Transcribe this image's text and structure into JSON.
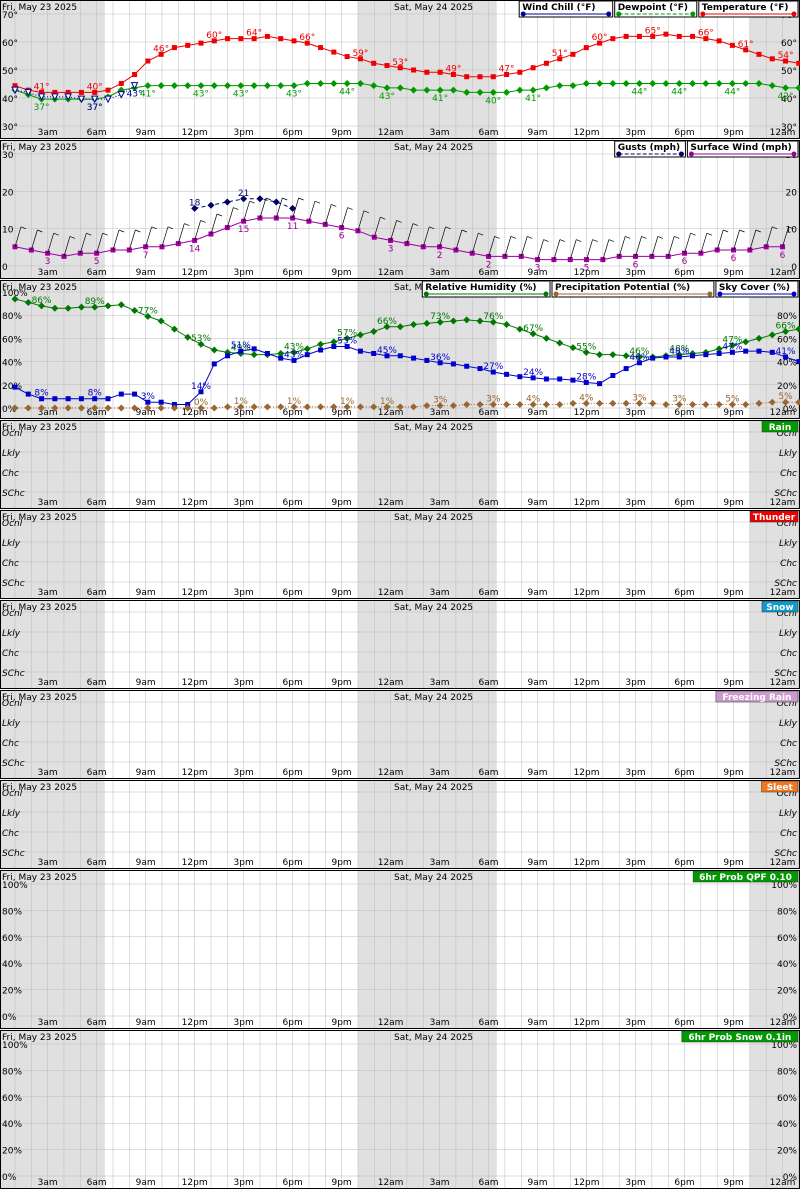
{
  "day_labels": [
    "Fri, May 23 2025",
    "Sat, May 24 2025"
  ],
  "time_labels": [
    "3am",
    "6am",
    "9am",
    "12pm",
    "3pm",
    "6pm",
    "9pm",
    "12am",
    "3am",
    "6am",
    "9am",
    "12pm",
    "3pm",
    "6pm",
    "9pm",
    "12am"
  ],
  "colors": {
    "temperature": "#ee0000",
    "dewpoint": "#009900",
    "wind_chill": "#000099",
    "surface_wind": "#990099",
    "gusts": "#000066",
    "humidity": "#007700",
    "sky_cover": "#0000cc",
    "precip_potential": "#996633",
    "night_shade": "#e0e0e0",
    "grid": "#bbbbbb"
  },
  "chart_data": [
    {
      "id": "temps",
      "type": "line",
      "legend": [
        "Wind Chill (°F)",
        "Dewpoint (°F)",
        "Temperature (°F)"
      ],
      "y_ticks": [
        "30°",
        "40°",
        "50°",
        "60°",
        "70°"
      ],
      "ylim": [
        25,
        75
      ],
      "x_hours": [
        0,
        47
      ],
      "series": [
        {
          "name": "Temperature (°F)",
          "values": [
            43,
            41,
            40,
            40,
            40,
            40,
            40,
            41,
            44,
            48,
            54,
            57,
            60,
            61,
            62,
            63,
            64,
            64,
            64,
            65,
            64,
            63,
            62,
            60,
            58,
            56,
            55,
            53,
            52,
            51,
            50,
            49,
            49,
            48,
            47,
            47,
            47,
            48,
            49,
            51,
            53,
            55,
            57,
            60,
            62,
            64,
            65,
            65,
            65,
            66,
            65,
            65,
            64,
            63,
            61,
            59,
            57,
            55,
            54,
            53
          ],
          "labels": [
            {
              "i": 2,
              "t": "41°"
            },
            {
              "i": 5,
              "t": "40°"
            },
            {
              "i": 9,
              "t": "46°"
            },
            {
              "i": 12,
              "t": "60°"
            },
            {
              "i": 15,
              "t": "64°"
            },
            {
              "i": 18,
              "t": "66°"
            },
            {
              "i": 21,
              "t": "59°"
            },
            {
              "i": 24,
              "t": "53°"
            },
            {
              "i": 27,
              "t": "49°"
            },
            {
              "i": 30,
              "t": "47°"
            },
            {
              "i": 33,
              "t": "51°"
            },
            {
              "i": 36,
              "t": "60°"
            },
            {
              "i": 39,
              "t": "65°"
            },
            {
              "i": 42,
              "t": "66°"
            },
            {
              "i": 45,
              "t": "61°"
            },
            {
              "i": 47,
              "t": "54°"
            }
          ]
        },
        {
          "name": "Dewpoint (°F)",
          "values": [
            41,
            39,
            37,
            37,
            37,
            37,
            37,
            38,
            41,
            42,
            43,
            43,
            43,
            43,
            43,
            43,
            43,
            43,
            43,
            43,
            43,
            43,
            44,
            44,
            44,
            44,
            44,
            43,
            42,
            42,
            41,
            41,
            41,
            41,
            40,
            40,
            40,
            40,
            41,
            41,
            42,
            43,
            43,
            44,
            44,
            44,
            44,
            44,
            44,
            44,
            44,
            44,
            44,
            44,
            44,
            44,
            44,
            43,
            42,
            42
          ],
          "labels": [
            {
              "i": 2,
              "t": "37°"
            },
            {
              "i": 5,
              "t": "37°"
            },
            {
              "i": 8,
              "t": "41°"
            },
            {
              "i": 11,
              "t": "43°"
            },
            {
              "i": 14,
              "t": "43°"
            },
            {
              "i": 17,
              "t": "43°"
            },
            {
              "i": 20,
              "t": "44°"
            },
            {
              "i": 23,
              "t": "43°"
            },
            {
              "i": 26,
              "t": "41°"
            },
            {
              "i": 29,
              "t": "40°"
            },
            {
              "i": 32,
              "t": "41°"
            },
            {
              "i": 38,
              "t": "44°"
            },
            {
              "i": 41,
              "t": "44°"
            },
            {
              "i": 44,
              "t": "44°"
            },
            {
              "i": 47,
              "t": "42°"
            }
          ]
        },
        {
          "name": "Wind Chill (°F)",
          "values": [
            41,
            40,
            38,
            38,
            38,
            37,
            37,
            37,
            39,
            43
          ],
          "labels": [
            {
              "i": 5,
              "t": "37°"
            },
            {
              "i": 8,
              "t": "43°"
            }
          ]
        }
      ]
    },
    {
      "id": "wind",
      "type": "line",
      "legend": [
        "Gusts (mph)",
        "Surface Wind (mph)"
      ],
      "y_ticks": [
        "0",
        "10",
        "20",
        "30"
      ],
      "ylim": [
        0,
        35
      ],
      "series": [
        {
          "name": "Surface Wind (mph)",
          "values": [
            6,
            5,
            4,
            3,
            4,
            4,
            5,
            5,
            6,
            6,
            7,
            8,
            10,
            12,
            14,
            15,
            15,
            15,
            14,
            13,
            12,
            11,
            9,
            8,
            7,
            6,
            6,
            5,
            4,
            3,
            3,
            3,
            2,
            2,
            2,
            2,
            2,
            3,
            3,
            3,
            3,
            4,
            4,
            5,
            5,
            5,
            6,
            6
          ],
          "labels": [
            {
              "i": 2,
              "t": "3"
            },
            {
              "i": 5,
              "t": "5"
            },
            {
              "i": 8,
              "t": "7"
            },
            {
              "i": 11,
              "t": "14"
            },
            {
              "i": 14,
              "t": "15"
            },
            {
              "i": 17,
              "t": "11"
            },
            {
              "i": 20,
              "t": "6"
            },
            {
              "i": 23,
              "t": "3"
            },
            {
              "i": 26,
              "t": "2"
            },
            {
              "i": 29,
              "t": "2"
            },
            {
              "i": 32,
              "t": "3"
            },
            {
              "i": 35,
              "t": "5"
            },
            {
              "i": 38,
              "t": "6"
            },
            {
              "i": 41,
              "t": "6"
            },
            {
              "i": 44,
              "t": "6"
            },
            {
              "i": 47,
              "t": "6"
            }
          ]
        },
        {
          "name": "Gusts (mph)",
          "start": 11,
          "values": [
            18,
            19,
            20,
            21,
            21,
            20,
            18
          ],
          "labels": [
            {
              "i": 11,
              "t": "18"
            },
            {
              "i": 14,
              "t": "21"
            }
          ]
        }
      ]
    },
    {
      "id": "sky",
      "type": "line",
      "legend": [
        "Relative Humidity (%)",
        "Precipitation Potential (%)",
        "Sky Cover (%)"
      ],
      "y_ticks": [
        "0%",
        "20%",
        "40%",
        "60%",
        "80%",
        "100%"
      ],
      "ylim": [
        0,
        100
      ],
      "series": [
        {
          "name": "Relative Humidity (%)",
          "values": [
            94,
            91,
            88,
            86,
            86,
            87,
            87,
            88,
            89,
            84,
            79,
            75,
            68,
            61,
            55,
            50,
            48,
            47,
            46,
            46,
            47,
            48,
            51,
            55,
            57,
            60,
            63,
            66,
            70,
            70,
            72,
            73,
            74,
            75,
            76,
            75,
            74,
            72,
            68,
            64,
            60,
            56,
            52,
            48,
            46,
            46,
            45,
            44,
            44,
            45,
            46,
            47,
            48,
            51,
            54,
            57,
            60,
            63,
            66,
            68
          ],
          "labels": [
            {
              "i": 2,
              "t": "86%"
            },
            {
              "i": 5,
              "t": "89%"
            },
            {
              "i": 8,
              "t": "77%"
            },
            {
              "i": 11,
              "t": "53%"
            },
            {
              "i": 14,
              "t": "49%"
            },
            {
              "i": 17,
              "t": "43%"
            },
            {
              "i": 20,
              "t": "57%"
            },
            {
              "i": 23,
              "t": "66%"
            },
            {
              "i": 26,
              "t": "73%"
            },
            {
              "i": 29,
              "t": "76%"
            },
            {
              "i": 32,
              "t": "67%"
            },
            {
              "i": 35,
              "t": "55%"
            },
            {
              "i": 38,
              "t": "46%"
            },
            {
              "i": 41,
              "t": "48%"
            },
            {
              "i": 44,
              "t": "47%"
            },
            {
              "i": 47,
              "t": "66%"
            }
          ]
        },
        {
          "name": "Sky Cover (%)",
          "values": [
            18,
            12,
            8,
            8,
            8,
            8,
            8,
            8,
            12,
            12,
            5,
            5,
            3,
            3,
            14,
            38,
            45,
            49,
            51,
            47,
            43,
            41,
            46,
            50,
            53,
            53,
            49,
            47,
            45,
            45,
            43,
            41,
            39,
            38,
            36,
            34,
            31,
            29,
            27,
            26,
            25,
            25,
            24,
            22,
            21,
            28,
            34,
            39,
            43,
            44,
            44,
            45,
            46,
            47,
            48,
            49,
            49,
            48,
            44,
            40
          ],
          "labels": [
            {
              "i": 2,
              "t": "8%"
            },
            {
              "i": 5,
              "t": "8%"
            },
            {
              "i": 8,
              "t": "3%"
            },
            {
              "i": 11,
              "t": "14%"
            },
            {
              "i": 14,
              "t": "51%"
            },
            {
              "i": 17,
              "t": "43%"
            },
            {
              "i": 20,
              "t": "53%"
            },
            {
              "i": 23,
              "t": "45%"
            },
            {
              "i": 26,
              "t": "36%"
            },
            {
              "i": 29,
              "t": "27%"
            },
            {
              "i": 32,
              "t": "24%"
            },
            {
              "i": 35,
              "t": "28%"
            },
            {
              "i": 38,
              "t": "46%"
            },
            {
              "i": 41,
              "t": "48%"
            },
            {
              "i": 44,
              "t": "47%"
            },
            {
              "i": 47,
              "t": "41%"
            }
          ]
        },
        {
          "name": "Precipitation Potential (%)",
          "values": [
            0,
            0,
            0,
            0,
            0,
            0,
            0,
            0,
            0,
            0,
            0,
            0,
            0,
            0,
            0,
            0,
            1,
            1,
            1,
            1,
            1,
            1,
            1,
            1,
            1,
            1,
            1,
            1,
            1,
            1,
            1,
            2,
            2,
            2,
            3,
            3,
            3,
            3,
            3,
            3,
            3,
            3,
            4,
            4,
            4,
            4,
            4,
            4,
            4,
            3,
            3,
            3,
            3,
            3,
            3,
            3,
            4,
            5,
            5,
            5
          ],
          "labels": [
            {
              "i": 11,
              "t": "0%"
            },
            {
              "i": 14,
              "t": "1%"
            },
            {
              "i": 17,
              "t": "1%"
            },
            {
              "i": 20,
              "t": "1%"
            },
            {
              "i": 23,
              "t": "1%"
            },
            {
              "i": 26,
              "t": "3%"
            },
            {
              "i": 29,
              "t": "3%"
            },
            {
              "i": 32,
              "t": "4%"
            },
            {
              "i": 35,
              "t": "4%"
            },
            {
              "i": 38,
              "t": "3%"
            },
            {
              "i": 41,
              "t": "3%"
            },
            {
              "i": 44,
              "t": "5%"
            },
            {
              "i": 47,
              "t": "5%"
            }
          ]
        }
      ]
    },
    {
      "id": "rain",
      "type": "table",
      "legend": [
        "Rain"
      ],
      "legend_color": "#009900",
      "y_ticks": [
        "Ocnl",
        "Lkly",
        "Chc",
        "SChc"
      ],
      "values": []
    },
    {
      "id": "thunder",
      "type": "table",
      "legend": [
        "Thunder"
      ],
      "legend_color": "#ee0000",
      "y_ticks": [
        "Ocnl",
        "Lkly",
        "Chc",
        "SChc"
      ],
      "values": []
    },
    {
      "id": "snow",
      "type": "table",
      "legend": [
        "Snow"
      ],
      "legend_color": "#1199cc",
      "y_ticks": [
        "Ocnl",
        "Lkly",
        "Chc",
        "SChc"
      ],
      "values": []
    },
    {
      "id": "freezing_rain",
      "type": "table",
      "legend": [
        "Freezing Rain"
      ],
      "legend_color": "#cc99cc",
      "y_ticks": [
        "Ocnl",
        "Lkly",
        "Chc",
        "SChc"
      ],
      "values": []
    },
    {
      "id": "sleet",
      "type": "table",
      "legend": [
        "Sleet"
      ],
      "legend_color": "#ee7722",
      "y_ticks": [
        "Ocnl",
        "Lkly",
        "Chc",
        "SChc"
      ],
      "values": []
    },
    {
      "id": "qpf",
      "type": "bar",
      "legend": [
        "6hr Prob QPF 0.10"
      ],
      "legend_color": "#009900",
      "y_ticks": [
        "0%",
        "20%",
        "40%",
        "60%",
        "80%",
        "100%"
      ],
      "values": []
    },
    {
      "id": "snow01",
      "type": "bar",
      "legend": [
        "6hr Prob Snow 0.1in"
      ],
      "legend_color": "#009900",
      "y_ticks": [
        "0%",
        "20%",
        "40%",
        "60%",
        "80%",
        "100%"
      ],
      "values": []
    }
  ]
}
